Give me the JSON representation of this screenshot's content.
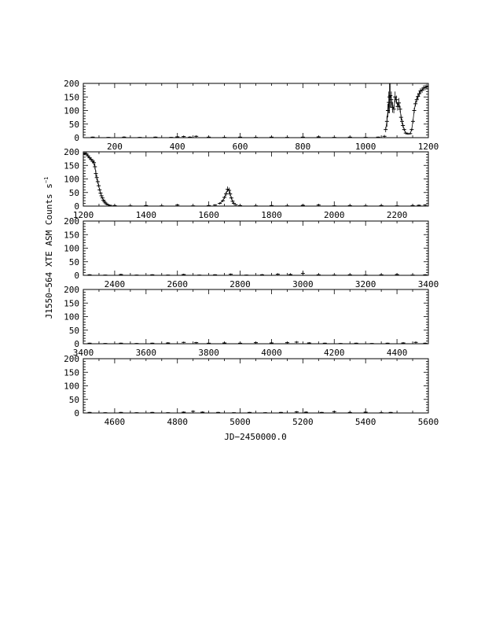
{
  "figure": {
    "xlabel": "JD−2450000.0",
    "ylabel_main": "J1550−564 XTE ASM Counts s",
    "ylabel_sup": "−1"
  },
  "chart_data": {
    "type": "scatter",
    "style": "black points with vertical error bars; connected line in outburst segments",
    "grid": false,
    "legend": "none",
    "panels": [
      {
        "xlim": [
          100,
          1200
        ],
        "ylim": [
          0,
          200
        ],
        "xticks": [
          200,
          400,
          600,
          800,
          1000,
          1200
        ],
        "yticks": [
          0,
          50,
          100,
          150,
          200
        ],
        "points": [
          [
            130,
            2,
            2
          ],
          [
            180,
            1,
            2
          ],
          [
            230,
            2,
            3
          ],
          [
            280,
            1,
            2
          ],
          [
            330,
            2,
            2
          ],
          [
            380,
            1,
            2
          ],
          [
            400,
            3,
            3
          ],
          [
            420,
            4,
            4
          ],
          [
            440,
            2,
            3
          ],
          [
            460,
            5,
            4
          ],
          [
            500,
            2,
            3
          ],
          [
            550,
            1,
            2
          ],
          [
            600,
            2,
            2
          ],
          [
            650,
            1,
            2
          ],
          [
            700,
            2,
            3
          ],
          [
            750,
            1,
            2
          ],
          [
            800,
            2,
            2
          ],
          [
            850,
            3,
            3
          ],
          [
            900,
            1,
            2
          ],
          [
            950,
            2,
            2
          ],
          [
            1000,
            1,
            2
          ],
          [
            1040,
            2,
            2
          ],
          [
            1060,
            5,
            5
          ],
          [
            1064,
            30,
            10
          ],
          [
            1068,
            60,
            20
          ],
          [
            1071,
            100,
            25
          ],
          [
            1074,
            130,
            40
          ],
          [
            1076,
            150,
            60
          ],
          [
            1079,
            155,
            45
          ],
          [
            1082,
            140,
            30
          ],
          [
            1086,
            112,
            20
          ],
          [
            1090,
            105,
            15
          ],
          [
            1094,
            150,
            20
          ],
          [
            1098,
            140,
            15
          ],
          [
            1102,
            115,
            15
          ],
          [
            1106,
            128,
            18
          ],
          [
            1110,
            105,
            12
          ],
          [
            1113,
            75,
            10
          ],
          [
            1116,
            60,
            10
          ],
          [
            1119,
            45,
            8
          ],
          [
            1123,
            30,
            6
          ],
          [
            1128,
            17,
            5
          ],
          [
            1135,
            14,
            4
          ],
          [
            1142,
            15,
            4
          ],
          [
            1147,
            30,
            6
          ],
          [
            1151,
            60,
            8
          ],
          [
            1155,
            100,
            10
          ],
          [
            1159,
            125,
            10
          ],
          [
            1163,
            140,
            10
          ],
          [
            1167,
            152,
            10
          ],
          [
            1171,
            162,
            10
          ],
          [
            1175,
            172,
            10
          ],
          [
            1180,
            175,
            10
          ],
          [
            1185,
            183,
            10
          ],
          [
            1190,
            185,
            10
          ],
          [
            1195,
            188,
            10
          ],
          [
            1200,
            190,
            10
          ]
        ]
      },
      {
        "xlim": [
          1200,
          2300
        ],
        "ylim": [
          0,
          200
        ],
        "xticks": [
          1200,
          1400,
          1600,
          1800,
          2000,
          2200
        ],
        "yticks": [
          0,
          50,
          100,
          150,
          200
        ],
        "points": [
          [
            1200,
            192,
            8
          ],
          [
            1205,
            195,
            8
          ],
          [
            1210,
            192,
            8
          ],
          [
            1215,
            185,
            8
          ],
          [
            1220,
            178,
            8
          ],
          [
            1225,
            172,
            8
          ],
          [
            1230,
            165,
            8
          ],
          [
            1234,
            160,
            10
          ],
          [
            1237,
            145,
            10
          ],
          [
            1240,
            120,
            12
          ],
          [
            1243,
            105,
            10
          ],
          [
            1246,
            90,
            8
          ],
          [
            1249,
            75,
            7
          ],
          [
            1252,
            60,
            6
          ],
          [
            1255,
            48,
            5
          ],
          [
            1258,
            38,
            5
          ],
          [
            1261,
            30,
            4
          ],
          [
            1264,
            22,
            4
          ],
          [
            1267,
            17,
            3
          ],
          [
            1270,
            12,
            3
          ],
          [
            1274,
            8,
            3
          ],
          [
            1278,
            5,
            2
          ],
          [
            1285,
            3,
            2
          ],
          [
            1300,
            2,
            2
          ],
          [
            1350,
            1,
            2
          ],
          [
            1400,
            2,
            2
          ],
          [
            1450,
            1,
            2
          ],
          [
            1500,
            4,
            3
          ],
          [
            1550,
            1,
            2
          ],
          [
            1600,
            2,
            2
          ],
          [
            1620,
            4,
            3
          ],
          [
            1635,
            10,
            4
          ],
          [
            1645,
            20,
            5
          ],
          [
            1650,
            32,
            6
          ],
          [
            1655,
            45,
            8
          ],
          [
            1660,
            62,
            10
          ],
          [
            1665,
            58,
            10
          ],
          [
            1668,
            45,
            8
          ],
          [
            1672,
            30,
            6
          ],
          [
            1676,
            18,
            5
          ],
          [
            1680,
            10,
            4
          ],
          [
            1686,
            5,
            3
          ],
          [
            1700,
            2,
            2
          ],
          [
            1750,
            1,
            2
          ],
          [
            1800,
            2,
            2
          ],
          [
            1850,
            1,
            2
          ],
          [
            1900,
            3,
            3
          ],
          [
            1950,
            4,
            4
          ],
          [
            2000,
            1,
            2
          ],
          [
            2050,
            2,
            2
          ],
          [
            2100,
            1,
            2
          ],
          [
            2150,
            2,
            2
          ],
          [
            2200,
            1,
            2
          ],
          [
            2250,
            2,
            2
          ],
          [
            2270,
            3,
            3
          ],
          [
            2290,
            4,
            3
          ]
        ]
      },
      {
        "xlim": [
          2300,
          3400
        ],
        "ylim": [
          0,
          200
        ],
        "xticks": [
          2400,
          2600,
          2800,
          3000,
          3200,
          3400
        ],
        "yticks": [
          0,
          50,
          100,
          150,
          200
        ],
        "points": [
          [
            2320,
            2,
            2
          ],
          [
            2370,
            1,
            2
          ],
          [
            2420,
            3,
            3
          ],
          [
            2470,
            1,
            2
          ],
          [
            2520,
            2,
            2
          ],
          [
            2570,
            1,
            2
          ],
          [
            2620,
            3,
            3
          ],
          [
            2670,
            1,
            2
          ],
          [
            2720,
            2,
            2
          ],
          [
            2770,
            4,
            3
          ],
          [
            2820,
            1,
            2
          ],
          [
            2870,
            2,
            3
          ],
          [
            2920,
            4,
            4
          ],
          [
            2960,
            3,
            5
          ],
          [
            3000,
            7,
            6
          ],
          [
            3050,
            2,
            3
          ],
          [
            3100,
            1,
            2
          ],
          [
            3150,
            2,
            2
          ],
          [
            3200,
            1,
            2
          ],
          [
            3250,
            2,
            2
          ],
          [
            3300,
            3,
            3
          ],
          [
            3350,
            1,
            2
          ],
          [
            3390,
            2,
            2
          ]
        ]
      },
      {
        "xlim": [
          3400,
          4500
        ],
        "ylim": [
          0,
          200
        ],
        "xticks": [
          3400,
          3600,
          3800,
          4000,
          4200,
          4400
        ],
        "yticks": [
          0,
          50,
          100,
          150,
          200
        ],
        "points": [
          [
            3420,
            2,
            2
          ],
          [
            3470,
            1,
            2
          ],
          [
            3520,
            2,
            2
          ],
          [
            3570,
            1,
            2
          ],
          [
            3620,
            2,
            2
          ],
          [
            3670,
            3,
            3
          ],
          [
            3720,
            5,
            3
          ],
          [
            3760,
            4,
            3
          ],
          [
            3800,
            2,
            2
          ],
          [
            3850,
            3,
            3
          ],
          [
            3900,
            2,
            2
          ],
          [
            3950,
            4,
            3
          ],
          [
            4000,
            3,
            3
          ],
          [
            4050,
            4,
            3
          ],
          [
            4080,
            6,
            4
          ],
          [
            4120,
            3,
            3
          ],
          [
            4170,
            2,
            2
          ],
          [
            4220,
            1,
            2
          ],
          [
            4270,
            2,
            2
          ],
          [
            4320,
            1,
            2
          ],
          [
            4370,
            2,
            2
          ],
          [
            4420,
            3,
            3
          ],
          [
            4460,
            5,
            4
          ],
          [
            4490,
            2,
            2
          ]
        ]
      },
      {
        "xlim": [
          4500,
          5600
        ],
        "ylim": [
          0,
          200
        ],
        "xticks": [
          4600,
          4800,
          5000,
          5200,
          5400,
          5600
        ],
        "yticks": [
          0,
          50,
          100,
          150,
          200
        ],
        "points": [
          [
            4520,
            2,
            2
          ],
          [
            4570,
            1,
            2
          ],
          [
            4620,
            2,
            2
          ],
          [
            4670,
            1,
            2
          ],
          [
            4720,
            2,
            2
          ],
          [
            4770,
            1,
            2
          ],
          [
            4820,
            3,
            3
          ],
          [
            4850,
            6,
            4
          ],
          [
            4880,
            3,
            3
          ],
          [
            4930,
            2,
            2
          ],
          [
            4980,
            1,
            2
          ],
          [
            5030,
            2,
            2
          ],
          [
            5080,
            1,
            2
          ],
          [
            5130,
            2,
            2
          ],
          [
            5180,
            4,
            3
          ],
          [
            5210,
            3,
            3
          ],
          [
            5260,
            2,
            2
          ],
          [
            5300,
            5,
            4
          ],
          [
            5350,
            2,
            2
          ],
          [
            5400,
            3,
            3
          ],
          [
            5450,
            1,
            2
          ],
          [
            5480,
            2,
            2
          ]
        ]
      }
    ]
  }
}
